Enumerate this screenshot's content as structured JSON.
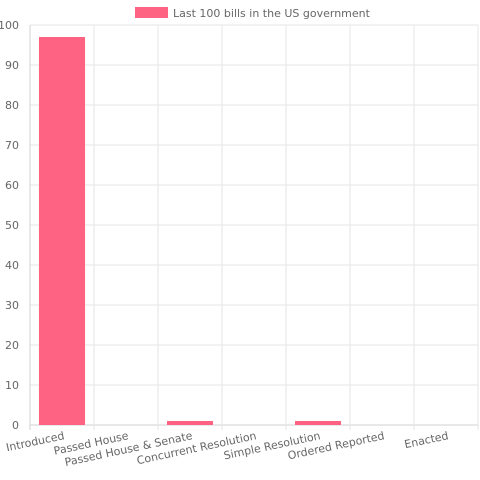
{
  "chart_data": {
    "type": "bar",
    "categories": [
      "Introduced",
      "Passed House",
      "Passed House & Senate",
      "Concurrent Resolution",
      "Simple Resolution",
      "Ordered Reported",
      "Enacted"
    ],
    "series": [
      {
        "name": "Last 100 bills in the US government",
        "values": [
          97,
          0,
          1,
          0,
          1,
          0,
          0
        ],
        "color": "#ff6384"
      }
    ],
    "ylim": [
      0,
      100
    ],
    "yticks": [
      0,
      10,
      20,
      30,
      40,
      50,
      60,
      70,
      80,
      90,
      100
    ],
    "grid": true,
    "legend_position": "top-center"
  }
}
